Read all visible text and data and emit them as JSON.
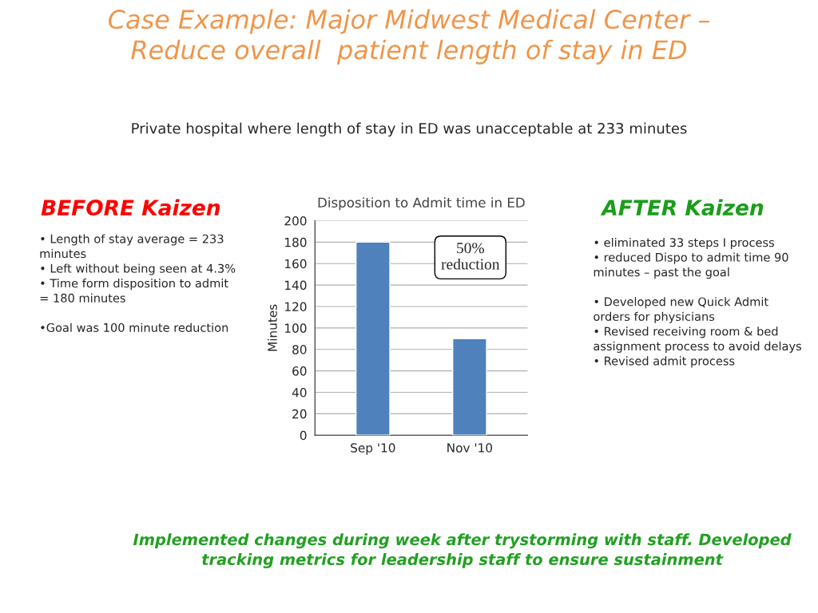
{
  "chart_data": {
    "type": "bar",
    "title": "Disposition to Admit time in ED",
    "ylabel": "Minutes",
    "categories": [
      "Sep '10",
      "Nov '10"
    ],
    "values": [
      180,
      90
    ],
    "color": "#4f81bd",
    "ylim": [
      0,
      200
    ],
    "yticks": [
      0,
      20,
      40,
      60,
      80,
      100,
      120,
      140,
      160,
      180,
      200
    ],
    "grid": "y",
    "annotations": [
      "Case Example: Major Midwest Medical Center –\nReduce overall  patient length of stay in ED",
      "Private hospital where length of stay in ED was unacceptable at 233 minutes",
      "BEFORE Kaizen",
      "• Length of stay average = 233\nminutes\n• Left without being seen at 4.3%\n• Time form disposition to admit\n= 180 minutes\n\n•Goal was 100 minute reduction",
      "AFTER Kaizen",
      "• eliminated 33 steps I process\n• reduced Dispo to admit time 90\nminutes – past the goal\n\n• Developed new Quick Admit\norders for physicians\n• Revised receiving room & bed\nassignment process to avoid delays\n• Revised admit process",
      "50%\nreduction",
      "Implemented changes during week after trystorming with staff. Developed\ntracking metrics for leadership staff to ensure sustainment"
    ]
  }
}
